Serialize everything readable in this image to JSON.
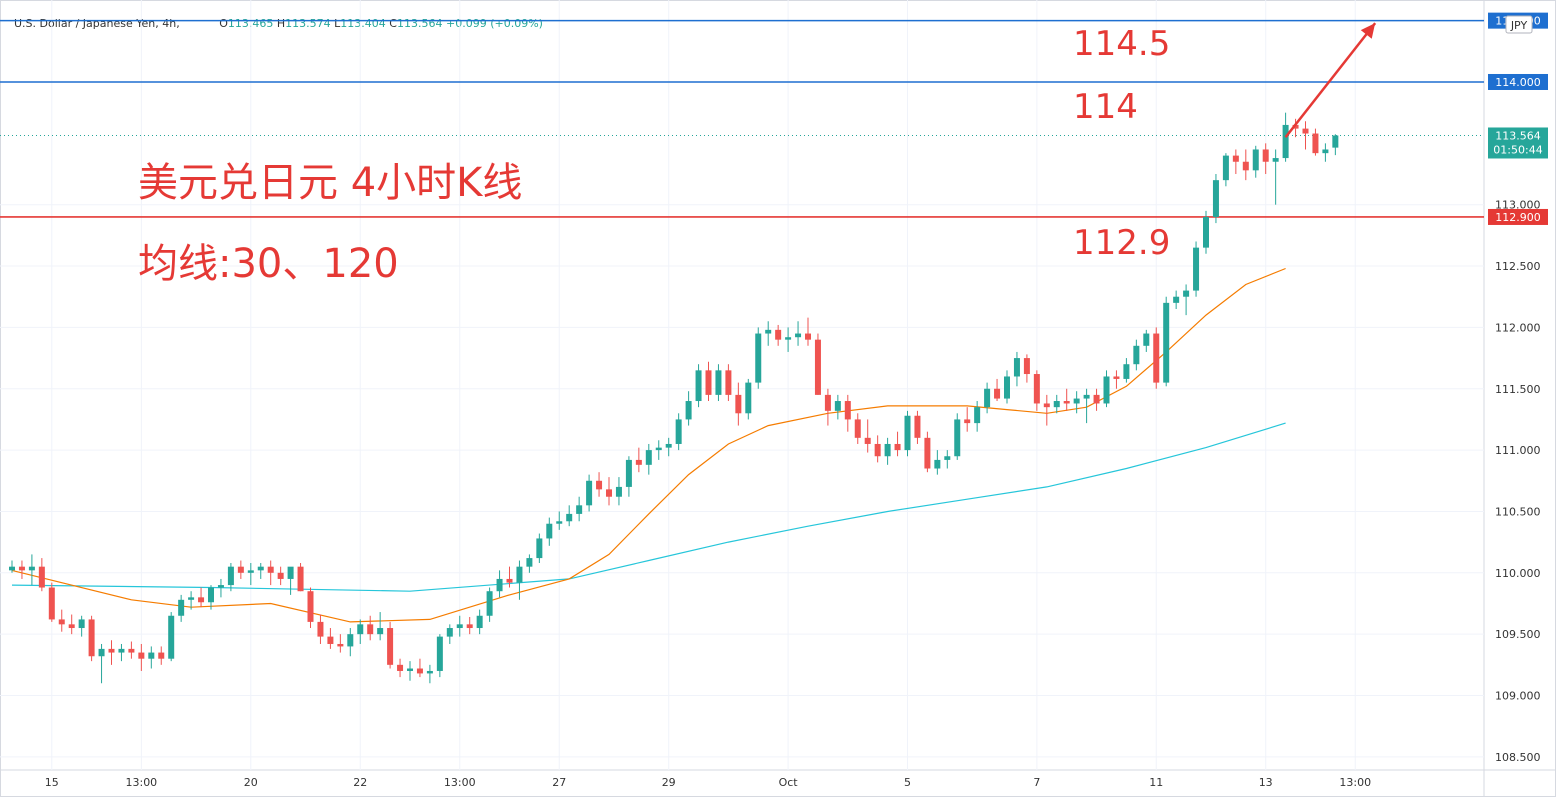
{
  "header": {
    "symbol": "U.S. Dollar / Japanese Yen, 4h,",
    "o_label": "O",
    "o_value": "113.465",
    "h_label": "H",
    "h_value": "113.574",
    "l_label": "L",
    "l_value": "113.404",
    "c_label": "C",
    "c_value": "113.564",
    "change": "+0.099 (+0.09%)"
  },
  "currency_badge": "JPY",
  "current_price": {
    "label": "113.564",
    "countdown": "01:50:44",
    "value": 113.564
  },
  "annotations": {
    "title_line1": "美元兑日元 4小时K线",
    "title_line2": "均线:30、120",
    "level_1145": "114.5",
    "level_114": "114",
    "level_1129": "112.9"
  },
  "colors": {
    "up": "#26a69a",
    "down": "#ef5350",
    "ma30": "#f57c00",
    "ma120": "#26c6da",
    "blue_line": "#1e6fd0",
    "red_line": "#e53935",
    "annotation": "#e53935"
  },
  "chart_data": {
    "type": "candlestick",
    "pair": "USDJPY",
    "timeframe": "4h",
    "ylim": [
      108.45,
      114.55
    ],
    "y_ticks": [
      108.5,
      109.0,
      109.5,
      110.0,
      110.5,
      111.0,
      111.5,
      112.0,
      112.5,
      113.0
    ],
    "y_tick_labels": [
      "108.500",
      "109.000",
      "109.500",
      "110.000",
      "110.500",
      "111.000",
      "111.500",
      "112.000",
      "112.500",
      "113.000"
    ],
    "x_tick_labels": [
      {
        "label": "15",
        "bar": 4
      },
      {
        "label": "13:00",
        "bar": 13
      },
      {
        "label": "20",
        "bar": 24
      },
      {
        "label": "22",
        "bar": 35
      },
      {
        "label": "13:00",
        "bar": 45
      },
      {
        "label": "27",
        "bar": 55
      },
      {
        "label": "29",
        "bar": 66
      },
      {
        "label": "Oct",
        "bar": 78
      },
      {
        "label": "5",
        "bar": 90
      },
      {
        "label": "7",
        "bar": 103
      },
      {
        "label": "11",
        "bar": 115
      },
      {
        "label": "13",
        "bar": 126
      },
      {
        "label": "13:00",
        "bar": 135
      }
    ],
    "horizontal_lines": [
      {
        "price": 114.5,
        "label": "114.500",
        "color": "#1e6fd0"
      },
      {
        "price": 114.0,
        "label": "114.000",
        "color": "#1e6fd0"
      },
      {
        "price": 112.9,
        "label": "112.900",
        "color": "#e53935"
      }
    ],
    "candles": [
      [
        110.02,
        110.1,
        110.0,
        110.05
      ],
      [
        110.05,
        110.1,
        109.95,
        110.02
      ],
      [
        110.02,
        110.15,
        109.9,
        110.05
      ],
      [
        110.05,
        110.12,
        109.85,
        109.88
      ],
      [
        109.88,
        109.92,
        109.6,
        109.62
      ],
      [
        109.62,
        109.7,
        109.52,
        109.58
      ],
      [
        109.58,
        109.66,
        109.5,
        109.55
      ],
      [
        109.55,
        109.65,
        109.48,
        109.62
      ],
      [
        109.62,
        109.65,
        109.28,
        109.32
      ],
      [
        109.32,
        109.42,
        109.1,
        109.38
      ],
      [
        109.38,
        109.45,
        109.25,
        109.35
      ],
      [
        109.35,
        109.42,
        109.28,
        109.38
      ],
      [
        109.38,
        109.44,
        109.3,
        109.35
      ],
      [
        109.35,
        109.42,
        109.2,
        109.3
      ],
      [
        109.3,
        109.4,
        109.22,
        109.35
      ],
      [
        109.35,
        109.4,
        109.25,
        109.3
      ],
      [
        109.3,
        109.68,
        109.28,
        109.65
      ],
      [
        109.65,
        109.82,
        109.6,
        109.78
      ],
      [
        109.78,
        109.85,
        109.7,
        109.8
      ],
      [
        109.8,
        109.88,
        109.72,
        109.76
      ],
      [
        109.76,
        109.9,
        109.7,
        109.88
      ],
      [
        109.88,
        109.95,
        109.8,
        109.9
      ],
      [
        109.9,
        110.08,
        109.85,
        110.05
      ],
      [
        110.05,
        110.1,
        109.95,
        110.0
      ],
      [
        110.0,
        110.08,
        109.9,
        110.02
      ],
      [
        110.02,
        110.08,
        109.95,
        110.05
      ],
      [
        110.05,
        110.1,
        109.9,
        110.0
      ],
      [
        110.0,
        110.05,
        109.9,
        109.95
      ],
      [
        109.95,
        110.02,
        109.82,
        110.05
      ],
      [
        110.05,
        110.08,
        109.85,
        109.85
      ],
      [
        109.85,
        109.88,
        109.55,
        109.6
      ],
      [
        109.6,
        109.66,
        109.42,
        109.48
      ],
      [
        109.48,
        109.55,
        109.38,
        109.42
      ],
      [
        109.42,
        109.5,
        109.35,
        109.4
      ],
      [
        109.4,
        109.55,
        109.32,
        109.5
      ],
      [
        109.5,
        109.62,
        109.42,
        109.58
      ],
      [
        109.58,
        109.65,
        109.45,
        109.5
      ],
      [
        109.5,
        109.68,
        109.45,
        109.55
      ],
      [
        109.55,
        109.6,
        109.22,
        109.25
      ],
      [
        109.25,
        109.3,
        109.15,
        109.2
      ],
      [
        109.2,
        109.28,
        109.12,
        109.22
      ],
      [
        109.22,
        109.3,
        109.15,
        109.18
      ],
      [
        109.18,
        109.25,
        109.1,
        109.2
      ],
      [
        109.2,
        109.5,
        109.15,
        109.48
      ],
      [
        109.48,
        109.58,
        109.42,
        109.55
      ],
      [
        109.55,
        109.65,
        109.48,
        109.58
      ],
      [
        109.58,
        109.64,
        109.5,
        109.55
      ],
      [
        109.55,
        109.7,
        109.5,
        109.65
      ],
      [
        109.65,
        109.88,
        109.6,
        109.85
      ],
      [
        109.85,
        110.02,
        109.8,
        109.95
      ],
      [
        109.95,
        110.05,
        109.88,
        109.92
      ],
      [
        109.92,
        110.1,
        109.78,
        110.05
      ]
    ],
    "candles_tail": [
      [
        110.05,
        110.15,
        110.0,
        110.12
      ],
      [
        110.12,
        110.32,
        110.08,
        110.28
      ],
      [
        110.28,
        110.45,
        110.22,
        110.4
      ],
      [
        110.4,
        110.5,
        110.35,
        110.42
      ],
      [
        110.42,
        110.55,
        110.38,
        110.48
      ],
      [
        110.48,
        110.62,
        110.42,
        110.55
      ],
      [
        110.55,
        110.8,
        110.5,
        110.75
      ],
      [
        110.75,
        110.82,
        110.62,
        110.68
      ],
      [
        110.68,
        110.78,
        110.55,
        110.62
      ],
      [
        110.62,
        110.78,
        110.55,
        110.7
      ],
      [
        110.7,
        110.95,
        110.62,
        110.92
      ],
      [
        110.92,
        111.02,
        110.82,
        110.88
      ],
      [
        110.88,
        111.05,
        110.8,
        111.0
      ],
      [
        111.0,
        111.08,
        110.92,
        111.02
      ],
      [
        111.02,
        111.1,
        110.95,
        111.05
      ],
      [
        111.05,
        111.3,
        111.0,
        111.25
      ],
      [
        111.25,
        111.48,
        111.2,
        111.4
      ],
      [
        111.4,
        111.7,
        111.35,
        111.65
      ],
      [
        111.65,
        111.72,
        111.4,
        111.45
      ],
      [
        111.45,
        111.7,
        111.4,
        111.65
      ],
      [
        111.65,
        111.7,
        111.4,
        111.45
      ],
      [
        111.45,
        111.55,
        111.2,
        111.3
      ],
      [
        111.3,
        111.58,
        111.25,
        111.55
      ],
      [
        111.55,
        112.0,
        111.5,
        111.95
      ],
      [
        111.95,
        112.05,
        111.85,
        111.98
      ],
      [
        111.98,
        112.02,
        111.85,
        111.9
      ],
      [
        111.9,
        112.0,
        111.8,
        111.92
      ],
      [
        111.92,
        112.05,
        111.85,
        111.95
      ],
      [
        111.95,
        112.08,
        111.85,
        111.9
      ],
      [
        111.9,
        111.95,
        111.45,
        111.45
      ],
      [
        111.45,
        111.5,
        111.2,
        111.32
      ],
      [
        111.32,
        111.45,
        111.25,
        111.4
      ],
      [
        111.4,
        111.45,
        111.15,
        111.25
      ],
      [
        111.25,
        111.3,
        111.05,
        111.1
      ],
      [
        111.1,
        111.25,
        110.98,
        111.05
      ],
      [
        111.05,
        111.12,
        110.9,
        110.95
      ],
      [
        110.95,
        111.1,
        110.88,
        111.05
      ],
      [
        111.05,
        111.15,
        110.95,
        111.0
      ],
      [
        111.0,
        111.32,
        110.95,
        111.28
      ],
      [
        111.28,
        111.32,
        111.05,
        111.1
      ],
      [
        111.1,
        111.15,
        110.82,
        110.85
      ],
      [
        110.85,
        111.0,
        110.8,
        110.92
      ],
      [
        110.92,
        111.0,
        110.85,
        110.95
      ],
      [
        110.95,
        111.3,
        110.92,
        111.25
      ],
      [
        111.25,
        111.35,
        111.15,
        111.22
      ],
      [
        111.22,
        111.4,
        111.15,
        111.35
      ]
    ],
    "candles_end": [
      [
        111.35,
        111.55,
        111.3,
        111.5
      ],
      [
        111.5,
        111.58,
        111.4,
        111.42
      ],
      [
        111.42,
        111.65,
        111.38,
        111.6
      ],
      [
        111.6,
        111.8,
        111.52,
        111.75
      ],
      [
        111.75,
        111.78,
        111.55,
        111.62
      ],
      [
        111.62,
        111.65,
        111.32,
        111.38
      ],
      [
        111.38,
        111.45,
        111.2,
        111.35
      ],
      [
        111.35,
        111.45,
        111.3,
        111.4
      ],
      [
        111.4,
        111.5,
        111.32,
        111.38
      ],
      [
        111.38,
        111.48,
        111.3,
        111.42
      ],
      [
        111.42,
        111.5,
        111.22,
        111.45
      ],
      [
        111.45,
        111.5,
        111.32,
        111.38
      ],
      [
        111.38,
        111.65,
        111.35,
        111.6
      ],
      [
        111.6,
        111.65,
        111.5,
        111.58
      ],
      [
        111.58,
        111.75,
        111.55,
        111.7
      ],
      [
        111.7,
        111.9,
        111.65,
        111.85
      ],
      [
        111.85,
        111.98,
        111.8,
        111.95
      ],
      [
        111.95,
        112.0,
        111.5,
        111.55
      ],
      [
        111.55,
        112.25,
        111.52,
        112.2
      ],
      [
        112.2,
        112.3,
        112.15,
        112.25
      ],
      [
        112.25,
        112.35,
        112.1,
        112.3
      ],
      [
        112.3,
        112.7,
        112.25,
        112.65
      ],
      [
        112.65,
        112.95,
        112.6,
        112.9
      ],
      [
        112.9,
        113.25,
        112.85,
        113.2
      ],
      [
        113.2,
        113.42,
        113.15,
        113.4
      ],
      [
        113.4,
        113.45,
        113.25,
        113.35
      ],
      [
        113.35,
        113.45,
        113.2,
        113.28
      ],
      [
        113.28,
        113.48,
        113.22,
        113.45
      ],
      [
        113.45,
        113.5,
        113.25,
        113.35
      ],
      [
        113.35,
        113.45,
        113.0,
        113.38
      ],
      [
        113.38,
        113.75,
        113.35,
        113.65
      ],
      [
        113.65,
        113.7,
        113.55,
        113.62
      ],
      [
        113.62,
        113.68,
        113.45,
        113.58
      ],
      [
        113.58,
        113.62,
        113.4,
        113.42
      ],
      [
        113.42,
        113.5,
        113.35,
        113.45
      ],
      [
        113.465,
        113.574,
        113.404,
        113.564
      ]
    ],
    "ma30": [
      [
        0,
        110.02
      ],
      [
        12,
        109.78
      ],
      [
        18,
        109.72
      ],
      [
        26,
        109.75
      ],
      [
        34,
        109.6
      ],
      [
        42,
        109.62
      ],
      [
        50,
        109.82
      ],
      [
        56,
        109.95
      ],
      [
        60,
        110.15
      ],
      [
        64,
        110.48
      ],
      [
        68,
        110.8
      ],
      [
        72,
        111.05
      ],
      [
        76,
        111.2
      ],
      [
        82,
        111.3
      ],
      [
        88,
        111.36
      ],
      [
        96,
        111.36
      ],
      [
        100,
        111.33
      ],
      [
        104,
        111.3
      ],
      [
        108,
        111.35
      ],
      [
        112,
        111.52
      ],
      [
        116,
        111.8
      ],
      [
        120,
        112.1
      ],
      [
        124,
        112.35
      ],
      [
        128,
        112.48
      ]
    ],
    "ma120": [
      [
        0,
        109.9
      ],
      [
        20,
        109.88
      ],
      [
        40,
        109.85
      ],
      [
        56,
        109.95
      ],
      [
        64,
        110.1
      ],
      [
        72,
        110.25
      ],
      [
        80,
        110.38
      ],
      [
        88,
        110.5
      ],
      [
        96,
        110.6
      ],
      [
        104,
        110.7
      ],
      [
        112,
        110.85
      ],
      [
        120,
        111.02
      ],
      [
        128,
        111.22
      ]
    ],
    "arrow": {
      "from_bar": 128,
      "from_price": 113.55,
      "to_bar": 137,
      "to_price": 114.48
    }
  }
}
